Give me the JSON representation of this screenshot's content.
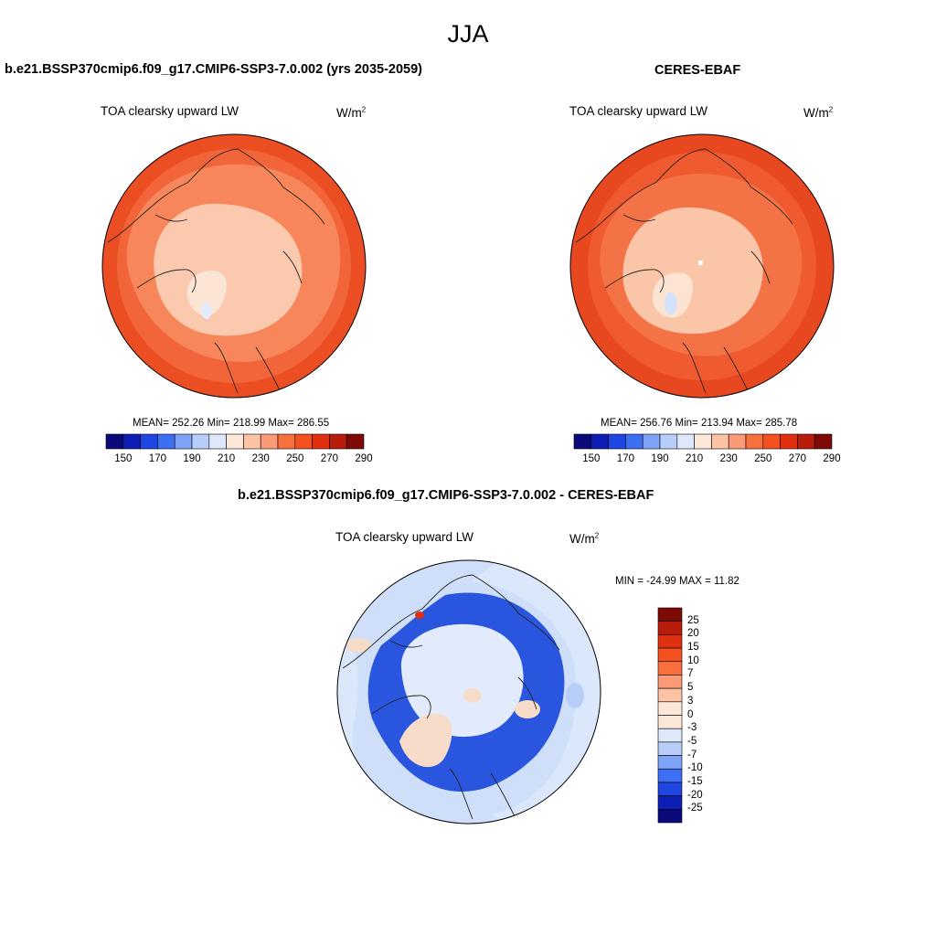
{
  "season": "JJA",
  "panels": [
    {
      "title": "b.e21.BSSP370cmip6.f09_g17.CMIP6-SSP3-7.0.002 (yrs 2035-2059)",
      "variable": "TOA clearsky upward LW",
      "units_base": "W/m",
      "units_exp": "2",
      "stats": "MEAN= 252.26  Min= 218.99  Max= 286.55",
      "colorbar_ticks": [
        "150",
        "170",
        "190",
        "210",
        "230",
        "250",
        "270",
        "290"
      ]
    },
    {
      "title": "CERES-EBAF",
      "variable": "TOA clearsky upward LW",
      "units_base": "W/m",
      "units_exp": "2",
      "stats": "MEAN= 256.76  Min= 213.94  Max= 285.78",
      "colorbar_ticks": [
        "150",
        "170",
        "190",
        "210",
        "230",
        "250",
        "270",
        "290"
      ]
    },
    {
      "title": "b.e21.BSSP370cmip6.f09_g17.CMIP6-SSP3-7.0.002 - CERES-EBAF",
      "variable": "TOA clearsky upward LW",
      "units_base": "W/m",
      "units_exp": "2",
      "stats": "MIN = -24.99 MAX =  11.82",
      "colorbar_ticks": [
        "25",
        "20",
        "15",
        "10",
        "7",
        "5",
        "3",
        "0",
        "-3",
        "-5",
        "-7",
        "-10",
        "-15",
        "-20",
        "-25"
      ]
    }
  ],
  "colors": {
    "abs_scale": [
      "#0a0a7a",
      "#0d1fb5",
      "#1f46e0",
      "#3d6ff5",
      "#7ea4f7",
      "#b8cdf8",
      "#dde8fb",
      "#fde7d8",
      "#fcc3a5",
      "#fb9a76",
      "#f9703f",
      "#f4511e",
      "#e03010",
      "#b81d0b",
      "#7e0a05"
    ],
    "diff_scale": [
      "#7e0a05",
      "#b81d0b",
      "#e03010",
      "#f4511e",
      "#f9703f",
      "#fb9a76",
      "#fcc3a5",
      "#fde7d8",
      "#dde8fb",
      "#b8cdf8",
      "#7ea4f7",
      "#3d6ff5",
      "#1f46e0",
      "#0d1fb5",
      "#0a0a7a"
    ],
    "ocean_warm": "#f2643a",
    "ocean_warm_outer": "#ec4e23",
    "ocean_mid": "#f7865a",
    "arctic_ice": "#fbc9ae",
    "greenland": "#fde5d5",
    "diff_ocean": "#cfdff9",
    "diff_land_neg": "#2a56df",
    "diff_arctic": "#e1ebfb",
    "diff_greenland": "#f6dcc9"
  }
}
